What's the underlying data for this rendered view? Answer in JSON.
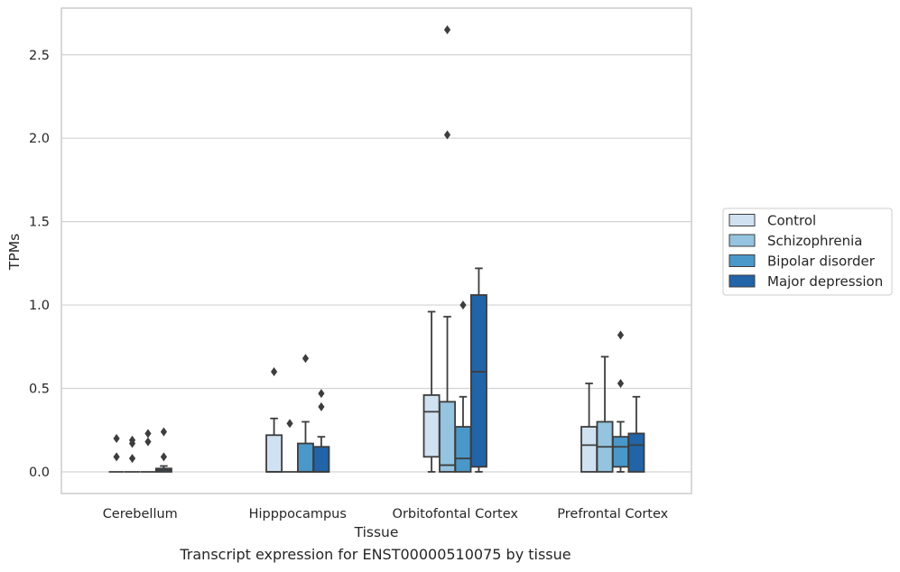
{
  "chart_data": {
    "type": "box",
    "caption": "Transcript expression for ENST00000510075 by tissue",
    "xlabel": "Tissue",
    "ylabel": "TPMs",
    "ylim": [
      -0.13,
      2.78
    ],
    "yticks": [
      "0.0",
      "0.5",
      "1.0",
      "1.5",
      "2.0",
      "2.5"
    ],
    "ytick_values": [
      0.0,
      0.5,
      1.0,
      1.5,
      2.0,
      2.5
    ],
    "grid": true,
    "legend_position": "right",
    "categories": [
      "Cerebellum",
      "Hipppocampus",
      "Orbitofontal Cortex",
      "Prefrontal Cortex"
    ],
    "series": [
      {
        "name": "Control",
        "color": "#d0e1f2",
        "boxes": [
          {
            "whislo": 0.0,
            "q1": 0.0,
            "med": 0.0,
            "q3": 0.0,
            "whishi": 0.0,
            "fliers": [
              0.2,
              0.09
            ]
          },
          {
            "whislo": 0.0,
            "q1": 0.0,
            "med": 0.0,
            "q3": 0.22,
            "whishi": 0.32,
            "fliers": [
              0.6
            ]
          },
          {
            "whislo": 0.0,
            "q1": 0.09,
            "med": 0.36,
            "q3": 0.46,
            "whishi": 0.96,
            "fliers": []
          },
          {
            "whislo": 0.0,
            "q1": 0.0,
            "med": 0.16,
            "q3": 0.27,
            "whishi": 0.53,
            "fliers": []
          }
        ]
      },
      {
        "name": "Schizophrenia",
        "color": "#94c4df",
        "boxes": [
          {
            "whislo": 0.0,
            "q1": 0.0,
            "med": 0.0,
            "q3": 0.0,
            "whishi": 0.0,
            "fliers": [
              0.19,
              0.17,
              0.08
            ]
          },
          {
            "whislo": 0.0,
            "q1": 0.0,
            "med": 0.0,
            "q3": 0.0,
            "whishi": 0.0,
            "fliers": [
              0.29
            ]
          },
          {
            "whislo": 0.0,
            "q1": 0.0,
            "med": 0.04,
            "q3": 0.42,
            "whishi": 0.93,
            "fliers": [
              2.65,
              2.02
            ]
          },
          {
            "whislo": 0.0,
            "q1": 0.0,
            "med": 0.15,
            "q3": 0.3,
            "whishi": 0.69,
            "fliers": []
          }
        ]
      },
      {
        "name": "Bipolar disorder",
        "color": "#4a98c9",
        "boxes": [
          {
            "whislo": 0.0,
            "q1": 0.0,
            "med": 0.0,
            "q3": 0.0,
            "whishi": 0.0,
            "fliers": [
              0.23,
              0.18
            ]
          },
          {
            "whislo": 0.0,
            "q1": 0.0,
            "med": 0.0,
            "q3": 0.17,
            "whishi": 0.3,
            "fliers": [
              0.68
            ]
          },
          {
            "whislo": 0.0,
            "q1": 0.0,
            "med": 0.08,
            "q3": 0.27,
            "whishi": 0.45,
            "fliers": [
              1.0
            ]
          },
          {
            "whislo": 0.0,
            "q1": 0.03,
            "med": 0.15,
            "q3": 0.21,
            "whishi": 0.3,
            "fliers": [
              0.82,
              0.53
            ]
          }
        ]
      },
      {
        "name": "Major depression",
        "color": "#2164a8",
        "boxes": [
          {
            "whislo": 0.0,
            "q1": 0.0,
            "med": 0.01,
            "q3": 0.02,
            "whishi": 0.035,
            "fliers": [
              0.24,
              0.09
            ]
          },
          {
            "whislo": 0.0,
            "q1": 0.0,
            "med": 0.0,
            "q3": 0.15,
            "whishi": 0.21,
            "fliers": [
              0.47,
              0.39
            ]
          },
          {
            "whislo": 0.0,
            "q1": 0.03,
            "med": 0.6,
            "q3": 1.06,
            "whishi": 1.22,
            "fliers": []
          },
          {
            "whislo": 0.0,
            "q1": 0.0,
            "med": 0.16,
            "q3": 0.23,
            "whishi": 0.45,
            "fliers": []
          }
        ]
      }
    ]
  }
}
